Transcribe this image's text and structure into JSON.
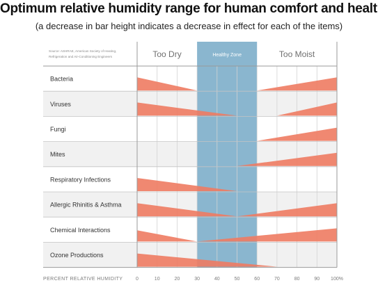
{
  "header": {
    "title": "Optimum relative humidity range for human comfort and health",
    "subtitle": "(a decrease in bar height indicates a decrease in effect for each of the items)"
  },
  "chart_data": {
    "type": "bar",
    "title": "Optimum relative humidity range for human comfort and health",
    "subtitle": "(a decrease in bar height indicates a decrease in effect for each of the items)",
    "source": "Source: ASHRAE, American Society of Heating, Refrigeration and Air-Conditioning Engineers",
    "source_lines": [
      "Source: ASHRAE, American Society of Heating,",
      "Refrigeration and Air-Conditioning Engineers"
    ],
    "xlabel": "PERCENT RELATIVE HUMIDITY",
    "x_ticks": [
      "0",
      "10",
      "20",
      "30",
      "40",
      "50",
      "60",
      "70",
      "80",
      "90",
      "100%"
    ],
    "xlim": [
      0,
      100
    ],
    "zones": [
      {
        "label": "Too Dry",
        "from": 0,
        "to": 30
      },
      {
        "label": "Healthy Zone",
        "from": 30,
        "to": 60,
        "color": "#8ab6cf"
      },
      {
        "label": "Too Moist",
        "from": 60,
        "to": 100
      }
    ],
    "bar_color": "#ee7b62",
    "grid": true,
    "categories": [
      "Bacteria",
      "Viruses",
      "Fungi",
      "Mites",
      "Respiratory Infections",
      "Allergic Rhinitis & Asthma",
      "Chemical Interactions",
      "Ozone Productions"
    ],
    "series": [
      {
        "decreasing": {
          "from": 0,
          "to": 30,
          "effect": 1.0
        },
        "increasing": {
          "from": 60,
          "to": 100,
          "effect": 1.0
        }
      },
      {
        "decreasing": {
          "from": 0,
          "to": 50,
          "effect": 1.0
        },
        "increasing": {
          "from": 70,
          "to": 100,
          "effect": 1.0
        }
      },
      {
        "decreasing": null,
        "increasing": {
          "from": 60,
          "to": 100,
          "effect": 1.0
        }
      },
      {
        "decreasing": null,
        "increasing": {
          "from": 50,
          "to": 100,
          "effect": 1.0
        }
      },
      {
        "decreasing": {
          "from": 0,
          "to": 50,
          "effect": 1.0
        },
        "increasing": null
      },
      {
        "decreasing": {
          "from": 0,
          "to": 50,
          "effect": 1.0
        },
        "increasing": {
          "from": 50,
          "to": 100,
          "effect": 1.0
        }
      },
      {
        "decreasing": {
          "from": 0,
          "to": 30,
          "effect": 0.85
        },
        "increasing": {
          "from": 30,
          "to": 100,
          "effect": 1.0
        }
      },
      {
        "decreasing": {
          "from": 0,
          "to": 70,
          "effect": 1.0
        },
        "increasing": null
      }
    ]
  }
}
